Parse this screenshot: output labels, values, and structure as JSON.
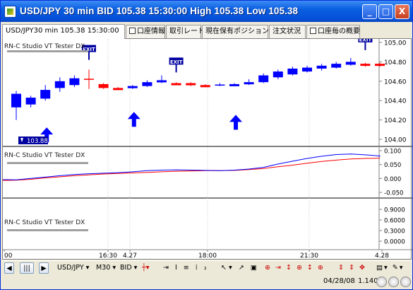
{
  "window": {
    "title": "USD/JPY 30 min BID 105.38 15:30:00 High 105.38 Low 105.38",
    "buttons": [
      "_",
      "□",
      "X"
    ]
  },
  "tabs": [
    {
      "label": "USD/JPY30 min 105.38 15:30:00",
      "active": true,
      "checkbox": false
    },
    {
      "label": "口座情報",
      "active": false,
      "checkbox": true
    },
    {
      "label": "取引レート",
      "active": false,
      "checkbox": false
    },
    {
      "label": "現在保有ポジション",
      "active": false,
      "checkbox": false
    },
    {
      "label": "注文状況",
      "active": false,
      "checkbox": false
    },
    {
      "label": "口座毎の概要",
      "active": false,
      "checkbox": true
    }
  ],
  "main_chart": {
    "price_axis": [
      "105.00",
      "104.80",
      "104.60",
      "104.40",
      "104.20",
      "104.00"
    ],
    "indicator_label": "RN-C Studio VT Tester DX",
    "exit_labels": [
      "EXIT",
      "EXIT",
      "EXIT"
    ],
    "price_marker": "103.88"
  },
  "indicator1": {
    "label": "RN-C Studio VT Tester DX",
    "axis": [
      "0.100",
      "0.050",
      "0.000",
      "-0.050"
    ]
  },
  "indicator2": {
    "label": "RN-C Studio VT Tester DX",
    "axis": [
      "0.9000",
      "0.6000",
      "0.3000",
      "0.0000"
    ]
  },
  "time_axis": [
    "00",
    "16:30",
    "4.27",
    "18:00",
    "21:30",
    "4.28"
  ],
  "toolbar": {
    "symbol": "USD/JPY",
    "timeframe": "M30",
    "side": "BID"
  },
  "status": {
    "date": "04/28/08",
    "value": "1.1400"
  },
  "colors": {
    "bull": "#0000ff",
    "bear": "#ff0000",
    "accent": "#0a5fe0"
  },
  "candles": [
    {
      "o": 104.33,
      "c": 104.47,
      "h": 104.5,
      "l": 104.2,
      "dir": "up"
    },
    {
      "o": 104.43,
      "c": 104.36,
      "h": 104.45,
      "l": 104.33,
      "dir": "up"
    },
    {
      "o": 104.42,
      "c": 104.51,
      "h": 104.56,
      "l": 104.4,
      "dir": "up"
    },
    {
      "o": 104.53,
      "c": 104.6,
      "h": 104.64,
      "l": 104.49,
      "dir": "up"
    },
    {
      "o": 104.56,
      "c": 104.63,
      "h": 104.66,
      "l": 104.54,
      "dir": "up"
    },
    {
      "o": 104.62,
      "c": 104.62,
      "h": 104.72,
      "l": 104.52,
      "dir": "doji-red"
    },
    {
      "o": 104.57,
      "c": 104.53,
      "h": 104.58,
      "l": 104.52,
      "dir": "down"
    },
    {
      "o": 104.53,
      "c": 104.53,
      "h": 104.54,
      "l": 104.52,
      "dir": "down"
    },
    {
      "o": 104.55,
      "c": 104.53,
      "h": 104.56,
      "l": 104.52,
      "dir": "up"
    },
    {
      "o": 104.55,
      "c": 104.59,
      "h": 104.61,
      "l": 104.54,
      "dir": "up"
    },
    {
      "o": 104.59,
      "c": 104.61,
      "h": 104.66,
      "l": 104.58,
      "dir": "up"
    },
    {
      "o": 104.58,
      "c": 104.57,
      "h": 104.59,
      "l": 104.56,
      "dir": "down"
    },
    {
      "o": 104.58,
      "c": 104.56,
      "h": 104.59,
      "l": 104.55,
      "dir": "down"
    },
    {
      "o": 104.56,
      "c": 104.55,
      "h": 104.57,
      "l": 104.54,
      "dir": "down"
    },
    {
      "o": 104.56,
      "c": 104.56,
      "h": 104.58,
      "l": 104.55,
      "dir": "doji-blue"
    },
    {
      "o": 104.56,
      "c": 104.57,
      "h": 104.58,
      "l": 104.55,
      "dir": "up"
    },
    {
      "o": 104.57,
      "c": 104.59,
      "h": 104.62,
      "l": 104.56,
      "dir": "up"
    },
    {
      "o": 104.59,
      "c": 104.66,
      "h": 104.68,
      "l": 104.58,
      "dir": "up"
    },
    {
      "o": 104.64,
      "c": 104.7,
      "h": 104.72,
      "l": 104.62,
      "dir": "up"
    },
    {
      "o": 104.67,
      "c": 104.73,
      "h": 104.75,
      "l": 104.66,
      "dir": "up"
    },
    {
      "o": 104.7,
      "c": 104.74,
      "h": 104.76,
      "l": 104.69,
      "dir": "up"
    },
    {
      "o": 104.73,
      "c": 104.76,
      "h": 104.78,
      "l": 104.71,
      "dir": "up"
    },
    {
      "o": 104.74,
      "c": 104.78,
      "h": 104.8,
      "l": 104.73,
      "dir": "up"
    },
    {
      "o": 104.77,
      "c": 104.8,
      "h": 104.84,
      "l": 104.76,
      "dir": "up"
    },
    {
      "o": 104.78,
      "c": 104.76,
      "h": 104.79,
      "l": 104.75,
      "dir": "down"
    },
    {
      "o": 104.78,
      "c": 104.76,
      "h": 104.79,
      "l": 104.75,
      "dir": "down"
    }
  ],
  "osc_blue": [
    -0.005,
    0.0,
    0.005,
    0.01,
    0.014,
    0.017,
    0.019,
    0.021,
    0.024,
    0.028,
    0.03,
    0.031,
    0.03,
    0.029,
    0.028,
    0.03,
    0.034,
    0.04,
    0.052,
    0.062,
    0.072,
    0.08,
    0.086,
    0.088,
    0.085,
    0.081
  ],
  "osc_red": [
    -0.006,
    -0.003,
    0.002,
    0.006,
    0.01,
    0.013,
    0.016,
    0.018,
    0.02,
    0.022,
    0.024,
    0.026,
    0.027,
    0.028,
    0.028,
    0.029,
    0.032,
    0.036,
    0.042,
    0.048,
    0.055,
    0.061,
    0.066,
    0.07,
    0.072,
    0.073
  ]
}
